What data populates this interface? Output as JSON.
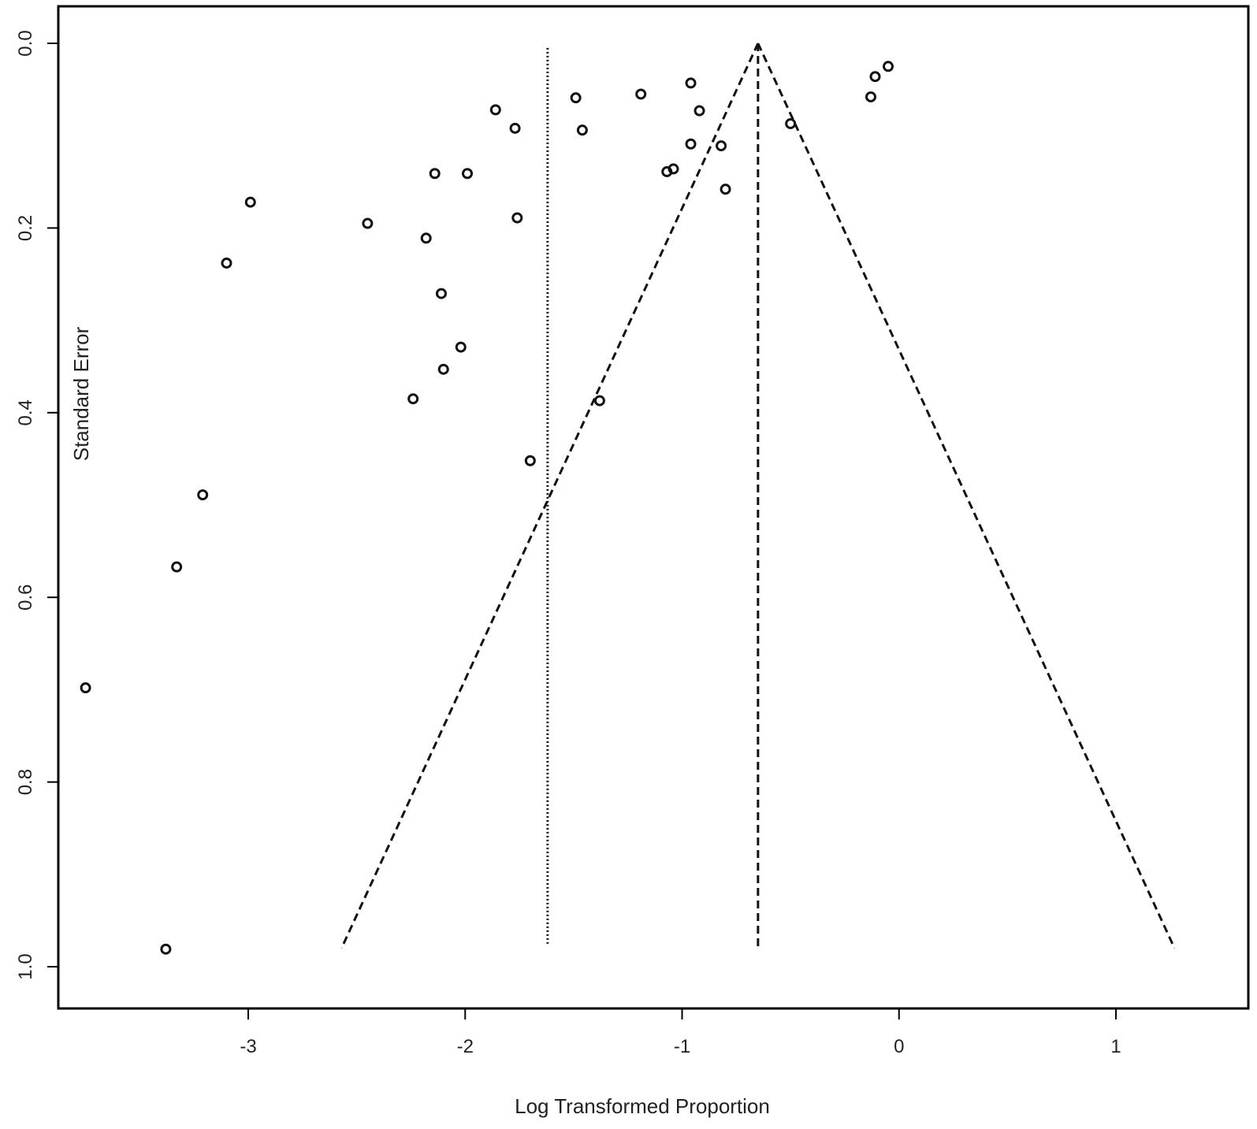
{
  "chart_data": {
    "type": "scatter",
    "xlabel": "Log Transformed Proportion",
    "ylabel": "Standard Error",
    "xlim": [
      -3.88,
      1.48
    ],
    "ylim": [
      1.02,
      -0.04
    ],
    "y_inverted": true,
    "x_ticks": [
      -3,
      -2,
      -1,
      0,
      1
    ],
    "x_tick_labels": [
      "-3",
      "-2",
      "-1",
      "0",
      "1"
    ],
    "y_ticks": [
      0.0,
      0.2,
      0.4,
      0.6,
      0.8,
      1.0
    ],
    "y_tick_labels": [
      "0.0",
      "0.2",
      "0.4",
      "0.6",
      "0.8",
      "1.0"
    ],
    "grid": false,
    "legend": "none",
    "colors": {
      "points": "#111111",
      "lines": "#111111",
      "frame": "#000000"
    },
    "pooled_estimate": -0.65,
    "funnel": {
      "apex_x": -0.65,
      "apex_se": 0.0,
      "base_se": 0.98,
      "base_left": -2.57,
      "base_right": 1.27
    },
    "reference_line_x": -1.62,
    "reference_line_se_range": [
      0.005,
      0.975
    ],
    "points": [
      {
        "x": -3.75,
        "y": 0.698
      },
      {
        "x": -3.38,
        "y": 0.981
      },
      {
        "x": -3.33,
        "y": 0.567
      },
      {
        "x": -3.21,
        "y": 0.489
      },
      {
        "x": -3.1,
        "y": 0.238
      },
      {
        "x": -2.99,
        "y": 0.172
      },
      {
        "x": -2.45,
        "y": 0.195
      },
      {
        "x": -2.24,
        "y": 0.385
      },
      {
        "x": -2.18,
        "y": 0.211
      },
      {
        "x": -2.14,
        "y": 0.141
      },
      {
        "x": -2.11,
        "y": 0.271
      },
      {
        "x": -2.1,
        "y": 0.353
      },
      {
        "x": -2.02,
        "y": 0.329
      },
      {
        "x": -1.99,
        "y": 0.141
      },
      {
        "x": -1.86,
        "y": 0.072
      },
      {
        "x": -1.77,
        "y": 0.092
      },
      {
        "x": -1.76,
        "y": 0.189
      },
      {
        "x": -1.7,
        "y": 0.452
      },
      {
        "x": -1.49,
        "y": 0.059
      },
      {
        "x": -1.46,
        "y": 0.094
      },
      {
        "x": -1.38,
        "y": 0.387
      },
      {
        "x": -1.19,
        "y": 0.055
      },
      {
        "x": -1.07,
        "y": 0.139
      },
      {
        "x": -1.04,
        "y": 0.136
      },
      {
        "x": -0.96,
        "y": 0.043
      },
      {
        "x": -0.96,
        "y": 0.109
      },
      {
        "x": -0.92,
        "y": 0.073
      },
      {
        "x": -0.82,
        "y": 0.111
      },
      {
        "x": -0.8,
        "y": 0.158
      },
      {
        "x": -0.5,
        "y": 0.087
      },
      {
        "x": -0.13,
        "y": 0.058
      },
      {
        "x": -0.11,
        "y": 0.036
      },
      {
        "x": -0.05,
        "y": 0.025
      }
    ]
  }
}
